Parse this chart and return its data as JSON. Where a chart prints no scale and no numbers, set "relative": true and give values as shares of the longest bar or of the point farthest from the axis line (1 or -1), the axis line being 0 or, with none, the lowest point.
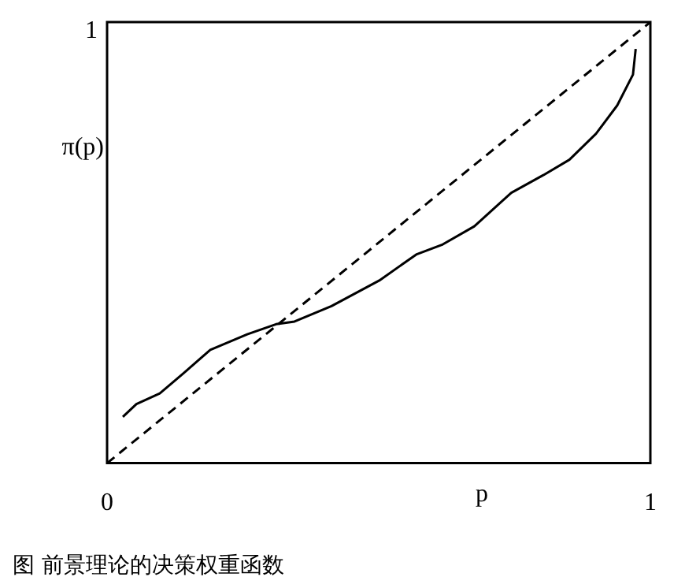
{
  "chart_data": {
    "type": "line",
    "relative": true,
    "ylabel": "π(p)",
    "xlabel": "p",
    "annotations": [
      "1",
      "图 前景理论的决策权重函数"
    ],
    "xlim": [
      0,
      1
    ],
    "xticks": [
      0,
      1
    ],
    "legend": false,
    "marker": "none",
    "series": [
      {
        "color": "#000000",
        "line_style": "solid",
        "x": [
          0.029,
          0.054,
          0.097,
          0.141,
          0.19,
          0.258,
          0.311,
          0.345,
          0.413,
          0.501,
          0.569,
          0.618,
          0.676,
          0.744,
          0.803,
          0.851,
          0.9,
          0.939,
          0.968,
          0.973
        ],
        "values": [
          0.105,
          0.134,
          0.158,
          0.204,
          0.257,
          0.292,
          0.315,
          0.321,
          0.356,
          0.414,
          0.473,
          0.496,
          0.537,
          0.613,
          0.653,
          0.688,
          0.747,
          0.811,
          0.881,
          0.939
        ]
      },
      {
        "color": "#000000",
        "line_style": "dashed",
        "x": [
          0,
          1
        ],
        "values": [
          0,
          1
        ]
      }
    ]
  }
}
